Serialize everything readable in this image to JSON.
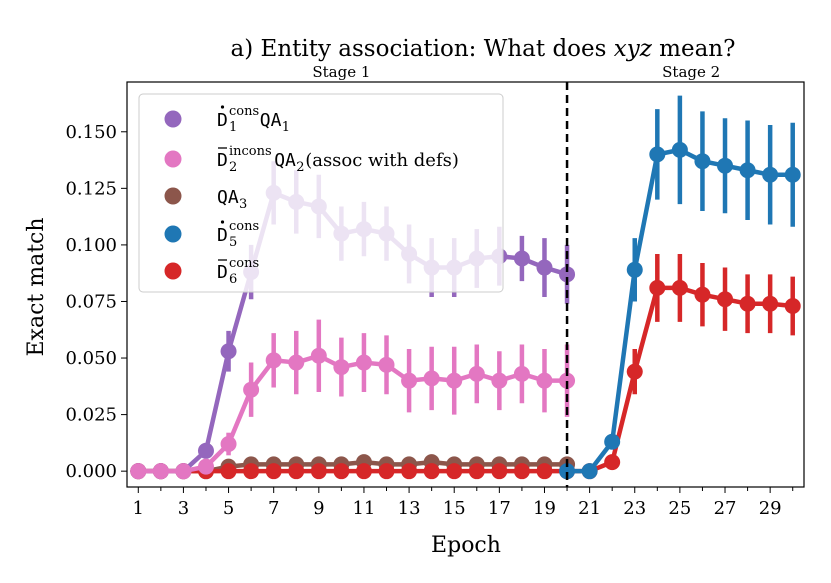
{
  "chart_data": {
    "type": "line",
    "title": "a) Entity association: What does xyz mean?",
    "title_parts": {
      "prefix": "a) Entity association: What does ",
      "emph": "xyz",
      "suffix": " mean?"
    },
    "xlabel": "Epoch",
    "ylabel": "Exact match",
    "xlim": [
      0.5,
      30.5
    ],
    "ylim": [
      -0.007,
      0.172
    ],
    "x_ticks_major": [
      1,
      3,
      5,
      7,
      9,
      11,
      13,
      15,
      17,
      19,
      21,
      23,
      25,
      27,
      29
    ],
    "y_ticks": [
      0.0,
      0.025,
      0.05,
      0.075,
      0.1,
      0.125,
      0.15
    ],
    "y_tick_labels": [
      "0.000",
      "0.025",
      "0.050",
      "0.075",
      "0.100",
      "0.125",
      "0.150"
    ],
    "stage_divider_x": 20,
    "stage_labels": [
      {
        "text": "Stage 1",
        "x": 10
      },
      {
        "text": "Stage 2",
        "x": 25.5
      }
    ],
    "legend_position": "upper-left",
    "series": [
      {
        "name": "D1cons QA1",
        "legend": {
          "d": "D",
          "sup": "cons",
          "sub": "1",
          "accent": "dot",
          "qa": "QA",
          "qa_sub": "1",
          "extra": ""
        },
        "color": "#9467bd",
        "x": [
          1,
          2,
          3,
          4,
          5,
          6,
          7,
          8,
          9,
          10,
          11,
          12,
          13,
          14,
          15,
          16,
          17,
          18,
          19,
          20
        ],
        "values": [
          0.0,
          0.0,
          0.0,
          0.009,
          0.053,
          0.088,
          0.123,
          0.119,
          0.117,
          0.105,
          0.107,
          0.105,
          0.096,
          0.09,
          0.09,
          0.094,
          0.095,
          0.094,
          0.09,
          0.087
        ],
        "errors": [
          0.0,
          0.0,
          0.0,
          0.003,
          0.009,
          0.012,
          0.014,
          0.014,
          0.014,
          0.012,
          0.012,
          0.012,
          0.013,
          0.013,
          0.013,
          0.013,
          0.013,
          0.01,
          0.013,
          0.013
        ]
      },
      {
        "name": "D2incons QA2 (assoc with defs)",
        "legend": {
          "d": "D",
          "sup": "incons",
          "sub": "2",
          "accent": "bar",
          "qa": "QA",
          "qa_sub": "2",
          "extra": " (assoc with defs)"
        },
        "color": "#e377c2",
        "x": [
          1,
          2,
          3,
          4,
          5,
          6,
          7,
          8,
          9,
          10,
          11,
          12,
          13,
          14,
          15,
          16,
          17,
          18,
          19,
          20
        ],
        "values": [
          0.0,
          0.0,
          0.0,
          0.002,
          0.012,
          0.036,
          0.049,
          0.048,
          0.051,
          0.046,
          0.048,
          0.047,
          0.04,
          0.041,
          0.04,
          0.043,
          0.04,
          0.043,
          0.04,
          0.04
        ],
        "errors": [
          0.0,
          0.0,
          0.0,
          0.002,
          0.005,
          0.012,
          0.012,
          0.014,
          0.016,
          0.013,
          0.013,
          0.013,
          0.014,
          0.014,
          0.015,
          0.013,
          0.013,
          0.013,
          0.014,
          0.016
        ]
      },
      {
        "name": "QA3",
        "legend": {
          "d": "",
          "sup": "",
          "sub": "",
          "accent": "",
          "qa": "QA",
          "qa_sub": "3",
          "extra": ""
        },
        "color": "#8c564b",
        "x": [
          1,
          2,
          3,
          4,
          5,
          6,
          7,
          8,
          9,
          10,
          11,
          12,
          13,
          14,
          15,
          16,
          17,
          18,
          19,
          20
        ],
        "values": [
          0.0,
          0.0,
          0.0,
          0.0,
          0.002,
          0.003,
          0.003,
          0.003,
          0.003,
          0.003,
          0.004,
          0.003,
          0.003,
          0.004,
          0.003,
          0.003,
          0.003,
          0.003,
          0.003,
          0.003
        ],
        "errors": [
          0.0,
          0.0,
          0.0,
          0.0,
          0.001,
          0.001,
          0.001,
          0.001,
          0.001,
          0.001,
          0.001,
          0.001,
          0.001,
          0.001,
          0.001,
          0.001,
          0.001,
          0.001,
          0.001,
          0.001
        ]
      },
      {
        "name": "D5cons",
        "legend": {
          "d": "D",
          "sup": "cons",
          "sub": "5",
          "accent": "dot",
          "qa": "",
          "qa_sub": "",
          "extra": ""
        },
        "color": "#1f77b4",
        "x": [
          20,
          21,
          22,
          23,
          24,
          25,
          26,
          27,
          28,
          29,
          30
        ],
        "values": [
          0.0,
          0.0,
          0.013,
          0.089,
          0.14,
          0.142,
          0.137,
          0.135,
          0.133,
          0.131,
          0.131
        ],
        "errors": [
          0.0,
          0.0,
          0.003,
          0.014,
          0.02,
          0.024,
          0.022,
          0.021,
          0.022,
          0.022,
          0.023
        ]
      },
      {
        "name": "D6cons",
        "legend": {
          "d": "D",
          "sup": "cons",
          "sub": "6",
          "accent": "bar",
          "qa": "",
          "qa_sub": "",
          "extra": ""
        },
        "color": "#d62728",
        "x": [
          1,
          2,
          3,
          4,
          5,
          6,
          7,
          8,
          9,
          10,
          11,
          12,
          13,
          14,
          15,
          16,
          17,
          18,
          19,
          20,
          21,
          22,
          23,
          24,
          25,
          26,
          27,
          28,
          29,
          30
        ],
        "values": [
          0.0,
          0.0,
          0.0,
          0.0,
          0.0,
          0.0,
          0.0,
          0.0,
          0.0,
          0.0,
          0.0,
          0.0,
          0.0,
          0.0,
          0.0,
          0.0,
          0.0,
          0.0,
          0.0,
          0.0,
          0.0,
          0.004,
          0.044,
          0.081,
          0.081,
          0.078,
          0.076,
          0.074,
          0.074,
          0.073
        ],
        "errors": [
          0.0,
          0.0,
          0.0,
          0.0,
          0.0,
          0.0,
          0.0,
          0.0,
          0.0,
          0.0,
          0.0,
          0.0,
          0.0,
          0.0,
          0.0,
          0.0,
          0.0,
          0.0,
          0.0,
          0.0,
          0.0,
          0.002,
          0.01,
          0.015,
          0.015,
          0.014,
          0.014,
          0.013,
          0.013,
          0.013
        ]
      }
    ]
  }
}
